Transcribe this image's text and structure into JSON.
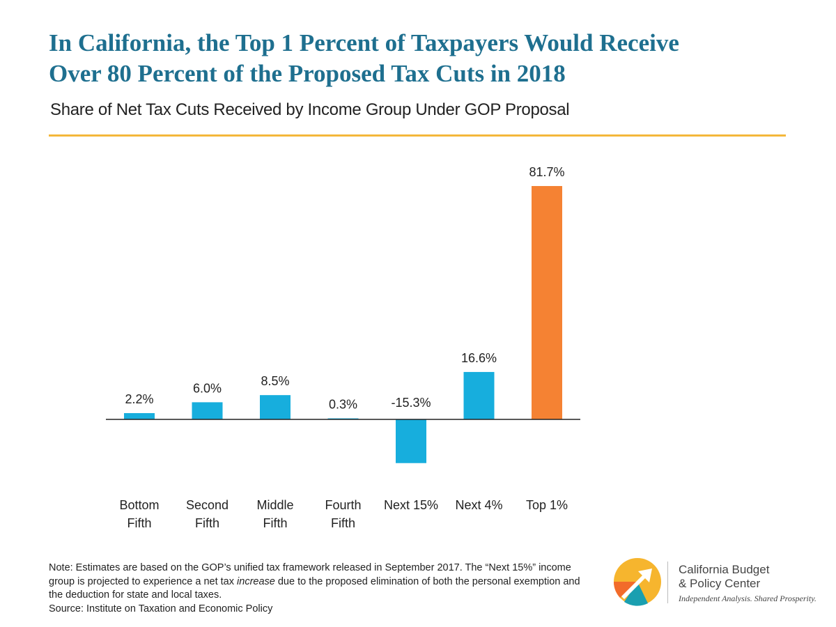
{
  "title_line1": "In California, the Top 1 Percent of Taxpayers Would Receive",
  "title_line2": "Over 80 Percent of the Proposed Tax Cuts in 2018",
  "subtitle": "Share of Net Tax Cuts Received by Income Group Under GOP Proposal",
  "colors": {
    "title": "#1e6f8f",
    "rule": "#f4b73b",
    "bar_default": "#17aedd",
    "bar_highlight": "#f58233"
  },
  "chart_data": {
    "type": "bar",
    "title": "",
    "xlabel": "",
    "ylabel": "",
    "categories": [
      [
        "Bottom",
        "Fifth"
      ],
      [
        "Second",
        "Fifth"
      ],
      [
        "Middle",
        "Fifth"
      ],
      [
        "Fourth",
        "Fifth"
      ],
      [
        "Next 15%"
      ],
      [
        "Next 4%"
      ],
      [
        "Top 1%"
      ]
    ],
    "values": [
      2.2,
      6.0,
      8.5,
      0.3,
      -15.3,
      16.6,
      81.7
    ],
    "data_labels": [
      "2.2%",
      "6.0%",
      "8.5%",
      "0.3%",
      "-15.3%",
      "16.6%",
      "81.7%"
    ],
    "highlight_index": 6,
    "ylim": [
      -15.3,
      81.7
    ],
    "grid": false,
    "legend": "none"
  },
  "note": {
    "part1": "Note: Estimates are based on the GOP’s unified tax framework released in September 2017. The “Next 15%” income group is projected to experience a net tax ",
    "emphasis": "increase",
    "part2": " due to the proposed elimination of both the personal exemption and the deduction for state and local taxes.",
    "source": "Source: Institute on Taxation and Economic Policy"
  },
  "logo": {
    "name_line1": "California Budget",
    "name_line2": "& Policy Center",
    "tagline": "Independent Analysis. Shared Prosperity."
  }
}
